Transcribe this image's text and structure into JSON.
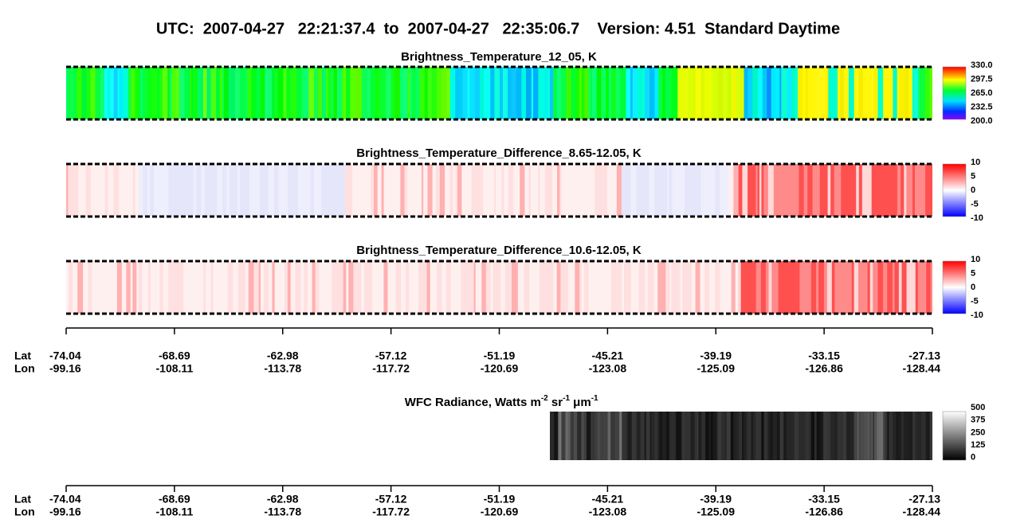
{
  "header": {
    "title": "UTC:  2007-04-27   22:21:37.4  to  2007-04-27   22:35:06.7    Version: 4.51  Standard Daytime"
  },
  "panels": [
    {
      "title": "Brightness_Temperature_12_05, K",
      "colorbar": [
        "330.0",
        "297.5",
        "265.0",
        "232.5",
        "200.0"
      ]
    },
    {
      "title": "Brightness_Temperature_Difference_8.65-12.05, K",
      "colorbar": [
        "10",
        "5",
        "0",
        "-5",
        "-10"
      ]
    },
    {
      "title": "Brightness_Temperature_Difference_10.6-12.05, K",
      "colorbar": [
        "10",
        "5",
        "0",
        "-5",
        "-10"
      ]
    }
  ],
  "axis": {
    "row_labels": [
      "Lat",
      "Lon"
    ],
    "lat": [
      "-74.04",
      "-68.69",
      "-62.98",
      "-57.12",
      "-51.19",
      "-45.21",
      "-39.19",
      "-33.15",
      "-27.13"
    ],
    "lon": [
      "-99.16",
      "-108.11",
      "-113.78",
      "-117.72",
      "-120.69",
      "-123.08",
      "-125.09",
      "-126.86",
      "-128.44"
    ]
  },
  "wfc": {
    "title": [
      "WFC Radiance, Watts m",
      "-2",
      " sr",
      "-1",
      " μm",
      "-1"
    ],
    "colorbar": [
      "500",
      "375",
      "250",
      "125",
      "0"
    ]
  }
}
